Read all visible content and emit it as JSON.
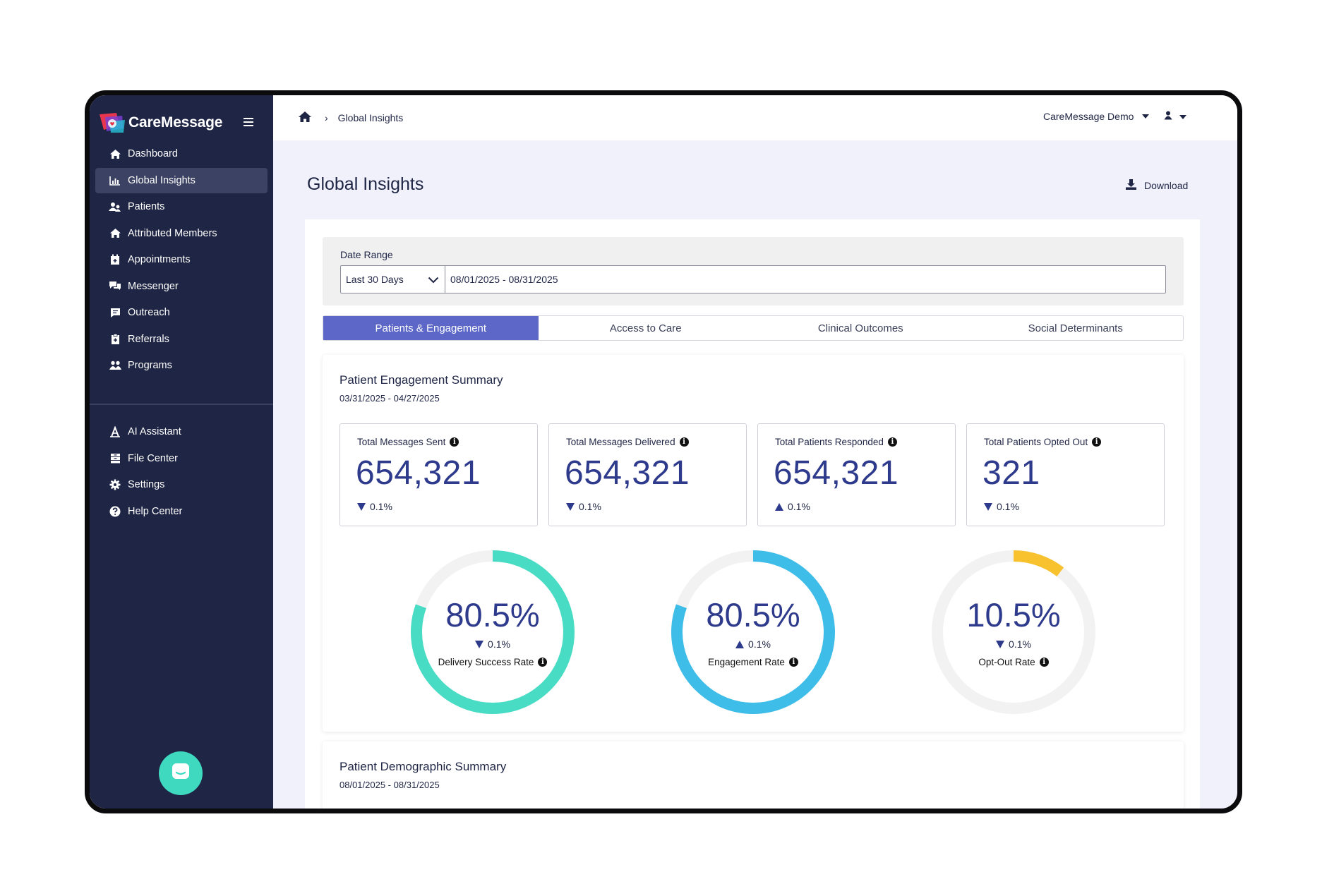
{
  "app": {
    "brand": "CareMessage"
  },
  "sidebar": {
    "items": [
      {
        "label": "Dashboard",
        "icon": "home-icon"
      },
      {
        "label": "Global Insights",
        "icon": "chart-icon",
        "active": true
      },
      {
        "label": "Patients",
        "icon": "patients-icon"
      },
      {
        "label": "Attributed Members",
        "icon": "home-icon"
      },
      {
        "label": "Appointments",
        "icon": "calendar-icon"
      },
      {
        "label": "Messenger",
        "icon": "chat-icon"
      },
      {
        "label": "Outreach",
        "icon": "message-icon"
      },
      {
        "label": "Referrals",
        "icon": "clipboard-icon"
      },
      {
        "label": "Programs",
        "icon": "users-icon"
      }
    ],
    "bottom_items": [
      {
        "label": "AI Assistant",
        "icon": "ai-icon"
      },
      {
        "label": "File Center",
        "icon": "archive-icon"
      },
      {
        "label": "Settings",
        "icon": "gear-icon"
      },
      {
        "label": "Help Center",
        "icon": "question-icon"
      }
    ]
  },
  "topbar": {
    "breadcrumb": "Global Insights",
    "organization": "CareMessage Demo"
  },
  "page": {
    "title": "Global Insights",
    "download_label": "Download"
  },
  "filter": {
    "label": "Date Range",
    "preset": "Last 30 Days",
    "range": "08/01/2025 - 08/31/2025"
  },
  "tabs": [
    {
      "label": "Patients & Engagement",
      "active": true
    },
    {
      "label": "Access to Care"
    },
    {
      "label": "Clinical Outcomes"
    },
    {
      "label": "Social Determinants"
    }
  ],
  "engagement": {
    "title": "Patient Engagement Summary",
    "range": "03/31/2025 - 04/27/2025",
    "kpis": [
      {
        "label": "Total Messages Sent",
        "value": "654,321",
        "delta": "0.1%",
        "direction": "down"
      },
      {
        "label": "Total Messages Delivered",
        "value": "654,321",
        "delta": "0.1%",
        "direction": "down"
      },
      {
        "label": "Total Patients Responded",
        "value": "654,321",
        "delta": "0.1%",
        "direction": "up"
      },
      {
        "label": "Total Patients Opted Out",
        "value": "321",
        "delta": "0.1%",
        "direction": "down"
      }
    ],
    "gauges": [
      {
        "label": "Delivery Success Rate",
        "value": "80.5%",
        "fraction": 0.805,
        "delta": "0.1%",
        "direction": "down",
        "color": "#48dcc4"
      },
      {
        "label": "Engagement Rate",
        "value": "80.5%",
        "fraction": 0.805,
        "delta": "0.1%",
        "direction": "up",
        "color": "#3fbde9"
      },
      {
        "label": "Opt-Out Rate",
        "value": "10.5%",
        "fraction": 0.105,
        "delta": "0.1%",
        "direction": "down",
        "color": "#f8c12e"
      }
    ]
  },
  "demographics": {
    "title": "Patient Demographic Summary",
    "range": "08/01/2025 - 08/31/2025"
  },
  "colors": {
    "sidebar_bg": "#1f2545",
    "accent": "#5c67c8",
    "value_text": "#2e3a8c",
    "track": "#f2f2f2",
    "chat_button": "#3ed9bf"
  }
}
